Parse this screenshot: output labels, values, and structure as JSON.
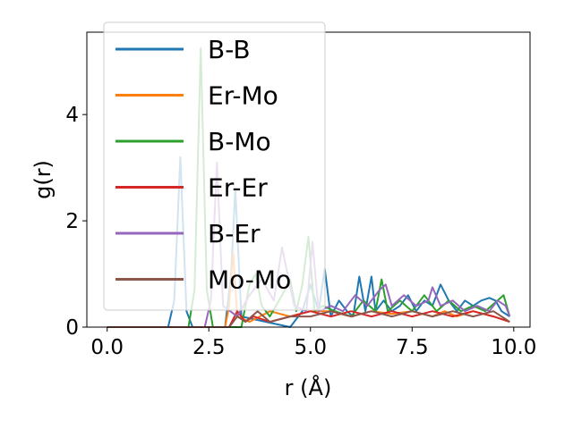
{
  "chart_data": {
    "type": "line",
    "title": "",
    "xlabel": "r (Å)",
    "ylabel": "g(r)",
    "xlim": [
      -0.5,
      10.4
    ],
    "ylim": [
      0,
      5.55
    ],
    "xticks": [
      0.0,
      2.5,
      5.0,
      7.5,
      10.0
    ],
    "xtick_labels": [
      "0.0",
      "2.5",
      "5.0",
      "7.5",
      "10.0"
    ],
    "yticks": [
      0,
      2,
      4
    ],
    "ytick_labels": [
      "0",
      "2",
      "4"
    ],
    "grid": false,
    "legend_position": "upper-left",
    "series": [
      {
        "name": "B-B",
        "color": "#1f77b4",
        "x": [
          0.0,
          1.5,
          1.65,
          1.8,
          1.95,
          2.1,
          2.9,
          3.05,
          3.15,
          3.3,
          4.5,
          4.8,
          5.0,
          5.2,
          5.35,
          5.5,
          5.7,
          5.9,
          6.05,
          6.2,
          6.35,
          6.5,
          6.6,
          6.8,
          7.0,
          7.2,
          7.4,
          7.6,
          7.8,
          8.0,
          8.2,
          8.4,
          8.6,
          8.8,
          9.0,
          9.2,
          9.4,
          9.55,
          9.7,
          9.9
        ],
        "y": [
          0,
          0,
          0.5,
          3.2,
          0.3,
          0,
          0,
          1.0,
          2.6,
          0.2,
          0,
          0.3,
          0.8,
          0.3,
          1.1,
          0.2,
          0.5,
          0.3,
          0.2,
          0.95,
          0.3,
          0.95,
          0.3,
          0.5,
          0.3,
          0.4,
          0.6,
          0.3,
          0.5,
          0.4,
          0.8,
          0.5,
          0.3,
          0.5,
          0.4,
          0.5,
          0.55,
          0.5,
          0.3,
          0.2
        ]
      },
      {
        "name": "Er-Mo",
        "color": "#ff7f0e",
        "x": [
          0.0,
          2.9,
          3.0,
          3.1,
          3.2,
          3.5,
          4.0,
          4.5,
          5.0,
          5.5,
          6.0,
          6.5,
          7.0,
          7.5,
          8.0,
          8.3,
          8.6,
          9.0,
          9.5,
          9.9
        ],
        "y": [
          0,
          0,
          0.4,
          1.4,
          0.2,
          0.1,
          0.3,
          0.2,
          0.3,
          0.3,
          0.2,
          0.3,
          0.25,
          0.3,
          0.2,
          0.3,
          0.2,
          0.3,
          0.2,
          0.1
        ]
      },
      {
        "name": "B-Mo",
        "color": "#2ca02c",
        "x": [
          0.0,
          2.0,
          2.15,
          2.3,
          2.45,
          2.6,
          3.3,
          3.5,
          3.65,
          3.8,
          4.0,
          4.3,
          4.5,
          4.65,
          4.8,
          4.95,
          5.1,
          5.3,
          5.6,
          6.0,
          6.3,
          6.6,
          6.75,
          6.9,
          7.2,
          7.5,
          7.8,
          8.1,
          8.4,
          8.7,
          9.0,
          9.3,
          9.6,
          9.75,
          9.9
        ],
        "y": [
          0,
          0,
          0.7,
          5.25,
          0.7,
          0,
          0,
          0.8,
          1.0,
          0.4,
          0.2,
          0.6,
          0.9,
          0.3,
          0.8,
          1.7,
          0.3,
          0.4,
          0.3,
          0.2,
          0.5,
          0.3,
          0.9,
          0.3,
          0.5,
          0.3,
          0.6,
          0.3,
          0.5,
          0.3,
          0.4,
          0.3,
          0.5,
          0.6,
          0.2
        ]
      },
      {
        "name": "Er-Er",
        "color": "#d62728",
        "x": [
          0.0,
          3.0,
          3.2,
          3.4,
          3.6,
          4.0,
          4.5,
          5.0,
          5.5,
          6.0,
          6.5,
          7.0,
          7.5,
          8.0,
          8.5,
          9.0,
          9.5,
          9.9
        ],
        "y": [
          0,
          0,
          0.3,
          0.1,
          0.2,
          0.1,
          0.2,
          0.3,
          0.2,
          0.3,
          0.2,
          0.3,
          0.2,
          0.3,
          0.2,
          0.3,
          0.2,
          0.1
        ]
      },
      {
        "name": "B-Er",
        "color": "#9467bd",
        "x": [
          0.0,
          2.4,
          2.55,
          2.7,
          2.85,
          3.2,
          3.5,
          3.8,
          4.1,
          4.3,
          4.6,
          4.9,
          5.05,
          5.2,
          5.5,
          5.8,
          6.1,
          6.4,
          6.7,
          6.85,
          7.0,
          7.3,
          7.6,
          7.9,
          8.0,
          8.2,
          8.5,
          8.8,
          9.1,
          9.4,
          9.6,
          9.8,
          9.9
        ],
        "y": [
          0,
          0,
          0.5,
          3.1,
          0.4,
          0.2,
          0.6,
          0.9,
          0.5,
          1.5,
          0.4,
          0.3,
          1.6,
          0.3,
          0.4,
          0.3,
          0.6,
          0.4,
          0.7,
          0.8,
          0.4,
          0.6,
          0.4,
          0.5,
          0.75,
          0.4,
          0.5,
          0.3,
          0.4,
          0.3,
          0.5,
          0.4,
          0.2
        ]
      },
      {
        "name": "Mo-Mo",
        "color": "#8c564b",
        "x": [
          0.0,
          3.0,
          3.2,
          3.4,
          3.7,
          4.0,
          4.5,
          5.0,
          5.5,
          6.0,
          6.5,
          7.0,
          7.5,
          8.0,
          8.5,
          9.0,
          9.5,
          9.9
        ],
        "y": [
          0,
          0,
          0.2,
          0.1,
          0.3,
          0.1,
          0.2,
          0.2,
          0.3,
          0.2,
          0.3,
          0.2,
          0.3,
          0.2,
          0.3,
          0.2,
          0.3,
          0.1
        ]
      }
    ]
  }
}
